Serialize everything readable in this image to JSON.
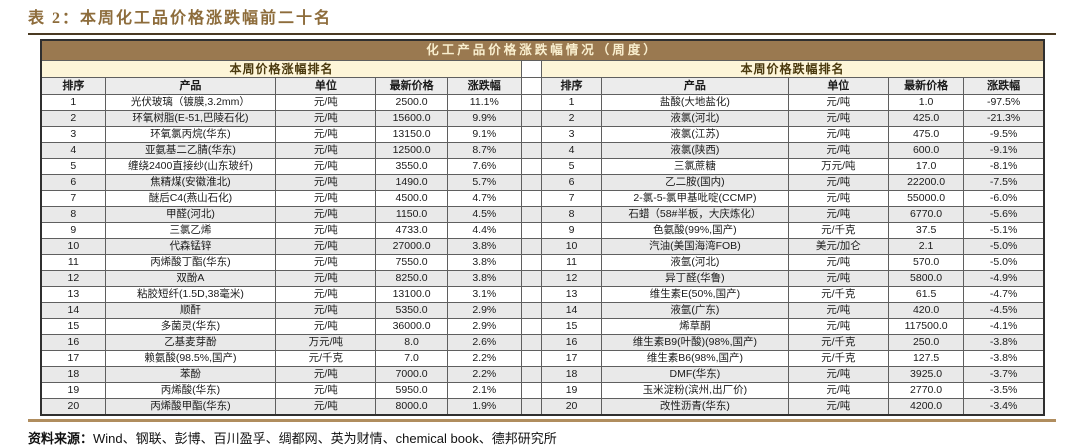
{
  "title": "表 2：本周化工品价格涨跌幅前二十名",
  "banner": "化工产品价格涨跌幅情况（周度）",
  "gainers": {
    "section_title": "本周价格涨幅排名",
    "headers": [
      "排序",
      "产品",
      "单位",
      "最新价格",
      "涨跌幅"
    ],
    "rows": [
      [
        "1",
        "光伏玻璃（镀膜,3.2mm）",
        "元/吨",
        "2500.0",
        "11.1%"
      ],
      [
        "2",
        "环氧树脂(E-51,巴陵石化)",
        "元/吨",
        "15600.0",
        "9.9%"
      ],
      [
        "3",
        "环氧氯丙烷(华东)",
        "元/吨",
        "13150.0",
        "9.1%"
      ],
      [
        "4",
        "亚氨基二乙腈(华东)",
        "元/吨",
        "12500.0",
        "8.7%"
      ],
      [
        "5",
        "缠绕2400直接纱(山东玻纤)",
        "元/吨",
        "3550.0",
        "7.6%"
      ],
      [
        "6",
        "焦精煤(安徽淮北)",
        "元/吨",
        "1490.0",
        "5.7%"
      ],
      [
        "7",
        "醚后C4(燕山石化)",
        "元/吨",
        "4500.0",
        "4.7%"
      ],
      [
        "8",
        "甲醛(河北)",
        "元/吨",
        "1150.0",
        "4.5%"
      ],
      [
        "9",
        "三氯乙烯",
        "元/吨",
        "4733.0",
        "4.4%"
      ],
      [
        "10",
        "代森锰锌",
        "元/吨",
        "27000.0",
        "3.8%"
      ],
      [
        "11",
        "丙烯酸丁酯(华东)",
        "元/吨",
        "7550.0",
        "3.8%"
      ],
      [
        "12",
        "双酚A",
        "元/吨",
        "8250.0",
        "3.8%"
      ],
      [
        "13",
        "粘胶短纤(1.5D,38毫米)",
        "元/吨",
        "13100.0",
        "3.1%"
      ],
      [
        "14",
        "顺酐",
        "元/吨",
        "5350.0",
        "2.9%"
      ],
      [
        "15",
        "多菌灵(华东)",
        "元/吨",
        "36000.0",
        "2.9%"
      ],
      [
        "16",
        "乙基麦芽酚",
        "万元/吨",
        "8.0",
        "2.6%"
      ],
      [
        "17",
        "赖氨酸(98.5%,国产)",
        "元/千克",
        "7.0",
        "2.2%"
      ],
      [
        "18",
        "苯酚",
        "元/吨",
        "7000.0",
        "2.2%"
      ],
      [
        "19",
        "丙烯酸(华东)",
        "元/吨",
        "5950.0",
        "2.1%"
      ],
      [
        "20",
        "丙烯酸甲酯(华东)",
        "元/吨",
        "8000.0",
        "1.9%"
      ]
    ]
  },
  "losers": {
    "section_title": "本周价格跌幅排名",
    "headers": [
      "排序",
      "产品",
      "单位",
      "最新价格",
      "涨跌幅"
    ],
    "rows": [
      [
        "1",
        "盐酸(大地盐化)",
        "元/吨",
        "1.0",
        "-97.5%"
      ],
      [
        "2",
        "液氯(河北)",
        "元/吨",
        "425.0",
        "-21.3%"
      ],
      [
        "3",
        "液氯(江苏)",
        "元/吨",
        "475.0",
        "-9.5%"
      ],
      [
        "4",
        "液氯(陕西)",
        "元/吨",
        "600.0",
        "-9.1%"
      ],
      [
        "5",
        "三氯蔗糖",
        "万元/吨",
        "17.0",
        "-8.1%"
      ],
      [
        "6",
        "乙二胺(国内)",
        "元/吨",
        "22200.0",
        "-7.5%"
      ],
      [
        "7",
        "2-氯-5-氯甲基吡啶(CCMP)",
        "元/吨",
        "55000.0",
        "-6.0%"
      ],
      [
        "8",
        "石蜡（58#半板，大庆炼化）",
        "元/吨",
        "6770.0",
        "-5.6%"
      ],
      [
        "9",
        "色氨酸(99%,国产)",
        "元/千克",
        "37.5",
        "-5.1%"
      ],
      [
        "10",
        "汽油(美国海湾FOB)",
        "美元/加仑",
        "2.1",
        "-5.0%"
      ],
      [
        "11",
        "液氩(河北)",
        "元/吨",
        "570.0",
        "-5.0%"
      ],
      [
        "12",
        "异丁醛(华鲁)",
        "元/吨",
        "5800.0",
        "-4.9%"
      ],
      [
        "13",
        "维生素E(50%,国产)",
        "元/千克",
        "61.5",
        "-4.7%"
      ],
      [
        "14",
        "液氩(广东)",
        "元/吨",
        "420.0",
        "-4.5%"
      ],
      [
        "15",
        "烯草酮",
        "元/吨",
        "117500.0",
        "-4.1%"
      ],
      [
        "16",
        "维生素B9(叶酸)(98%,国产)",
        "元/千克",
        "250.0",
        "-3.8%"
      ],
      [
        "17",
        "维生素B6(98%,国产)",
        "元/千克",
        "127.5",
        "-3.8%"
      ],
      [
        "18",
        "DMF(华东)",
        "元/吨",
        "3925.0",
        "-3.7%"
      ],
      [
        "19",
        "玉米淀粉(滨州,出厂价)",
        "元/吨",
        "2770.0",
        "-3.5%"
      ],
      [
        "20",
        "改性沥青(华东)",
        "元/吨",
        "4200.0",
        "-3.4%"
      ]
    ]
  },
  "footer": {
    "source_label": "资料来源：",
    "source_text": "Wind、钢联、彭博、百川盈孚、绸都网、英为财情、chemical book、德邦研究所"
  },
  "colors": {
    "title_color": "#8d6c3b",
    "banner_bg": "#9a7950",
    "banner_fg": "#f9efcf",
    "section_bg": "#fdf5d8",
    "section_fg": "#4b3a0e",
    "head_bg": "#ececec",
    "stripe": "#e9e9e9",
    "rule_dark": "#4a3a22",
    "rule_tan": "#b08d5e"
  }
}
